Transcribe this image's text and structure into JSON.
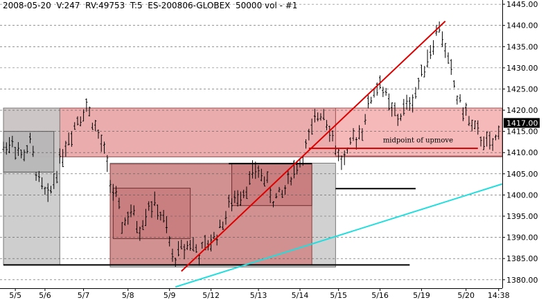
{
  "header": {
    "text": "2008-05-20  V:247  RV:49753  T:5  ES-200806-GLOBEX  50000 vol - #1"
  },
  "chart_data": {
    "type": "line",
    "style": "ohlc-bars",
    "title": "2008-05-20  V:247  RV:49753  T:5  ES-200806-GLOBEX  50000 vol - #1",
    "y_axis_side": "right",
    "ylim": [
      1378,
      1446
    ],
    "y_ticks": [
      1380,
      1385,
      1390,
      1395,
      1400,
      1405,
      1410,
      1415,
      1420,
      1425,
      1430,
      1435,
      1440,
      1445
    ],
    "y_tick_labels": [
      "1380.00",
      "1385.00",
      "1390.00",
      "1395.00",
      "1400.00",
      "1405.00",
      "1410.00",
      "1415.00",
      "1420.00",
      "1425.00",
      "1430.00",
      "1435.00",
      "1440.00",
      "1445.00"
    ],
    "grid": true,
    "last_price_label": "1417.00",
    "last_price": 1417,
    "x_ticks": [
      {
        "label": "5/5",
        "bar": 4
      },
      {
        "label": "5/6",
        "bar": 14
      },
      {
        "label": "5/7",
        "bar": 27
      },
      {
        "label": "5/8",
        "bar": 42
      },
      {
        "label": "5/9",
        "bar": 56
      },
      {
        "label": "5/12",
        "bar": 70
      },
      {
        "label": "5/13",
        "bar": 86
      },
      {
        "label": "5/14",
        "bar": 100
      },
      {
        "label": "5/15",
        "bar": 113
      },
      {
        "label": "5/16",
        "bar": 127
      },
      {
        "label": "5/19",
        "bar": 141
      },
      {
        "label": "5/20",
        "bar": 156
      },
      {
        "label": "14:38",
        "bar": 167
      }
    ],
    "bar_count": 170,
    "path_points": [
      [
        0,
        1411
      ],
      [
        3,
        1413
      ],
      [
        6,
        1409
      ],
      [
        9,
        1412
      ],
      [
        12,
        1403
      ],
      [
        15,
        1399
      ],
      [
        18,
        1406
      ],
      [
        21,
        1412
      ],
      [
        25,
        1418
      ],
      [
        28,
        1421
      ],
      [
        31,
        1416
      ],
      [
        34,
        1410
      ],
      [
        36,
        1403
      ],
      [
        38,
        1399
      ],
      [
        40,
        1393
      ],
      [
        43,
        1396
      ],
      [
        46,
        1392
      ],
      [
        49,
        1398
      ],
      [
        52,
        1397
      ],
      [
        55,
        1392
      ],
      [
        57,
        1385
      ],
      [
        60,
        1387
      ],
      [
        63,
        1389
      ],
      [
        66,
        1386
      ],
      [
        70,
        1389
      ],
      [
        73,
        1392
      ],
      [
        76,
        1397
      ],
      [
        79,
        1400
      ],
      [
        82,
        1402
      ],
      [
        85,
        1406
      ],
      [
        88,
        1404
      ],
      [
        91,
        1399
      ],
      [
        94,
        1400
      ],
      [
        97,
        1405
      ],
      [
        100,
        1408
      ],
      [
        103,
        1413
      ],
      [
        106,
        1419
      ],
      [
        108,
        1420
      ],
      [
        110,
        1416
      ],
      [
        112,
        1411
      ],
      [
        114,
        1408
      ],
      [
        116,
        1409
      ],
      [
        118,
        1413
      ],
      [
        121,
        1416
      ],
      [
        124,
        1423
      ],
      [
        127,
        1427
      ],
      [
        130,
        1421
      ],
      [
        133,
        1418
      ],
      [
        136,
        1421
      ],
      [
        139,
        1424
      ],
      [
        142,
        1431
      ],
      [
        145,
        1436
      ],
      [
        147,
        1440
      ],
      [
        149,
        1434
      ],
      [
        151,
        1429
      ],
      [
        153,
        1423
      ],
      [
        156,
        1419
      ],
      [
        159,
        1415
      ],
      [
        162,
        1413
      ],
      [
        165,
        1411
      ],
      [
        168,
        1417
      ]
    ],
    "shaded_zones": [
      {
        "name": "upper-resistance-zone",
        "color": "#e8a3a3",
        "opacity": 0.9,
        "bar_from": 0,
        "bar_to": 175,
        "y_from": 1409,
        "y_to": 1420.5,
        "border": "#a04a4a"
      },
      {
        "name": "lower-range-zone",
        "color": "#c9c9c9",
        "opacity": 0.9,
        "bar_from": 0,
        "bar_to": 19,
        "y_from": 1383.5,
        "y_to": 1420.5,
        "border": "#777777"
      },
      {
        "name": "range-consolidation-zone",
        "color": "#c9c9c9",
        "opacity": 0.85,
        "bar_from": 36,
        "bar_to": 112,
        "y_from": 1383,
        "y_to": 1407.5,
        "border": "#777777"
      },
      {
        "name": "mid-box-1",
        "color": "#d28a8a",
        "opacity": 0.9,
        "bar_from": 36,
        "bar_to": 104,
        "y_from": 1383.5,
        "y_to": 1407.3,
        "border": "#8c3e3e"
      },
      {
        "name": "small-box-left",
        "color": "#b0b0b0",
        "opacity": 0.7,
        "bar_from": 0,
        "bar_to": 17,
        "y_from": 1405.4,
        "y_to": 1415,
        "border": "#555555"
      },
      {
        "name": "small-box-mid",
        "color": "#c47878",
        "opacity": 0.7,
        "bar_from": 37,
        "bar_to": 63,
        "y_from": 1389.7,
        "y_to": 1401.6,
        "border": "#6d2d2d"
      },
      {
        "name": "small-box-right",
        "color": "#c47878",
        "opacity": 0.7,
        "bar_from": 77,
        "bar_to": 104,
        "y_from": 1397.5,
        "y_to": 1407.5,
        "border": "#6d2d2d"
      },
      {
        "name": "pink-zone-right",
        "color": "#f6b9b9",
        "opacity": 0.95,
        "bar_from": 112,
        "bar_to": 170,
        "y_from": 1409.2,
        "y_to": 1420.5,
        "border": "#a04a4a"
      }
    ],
    "trend_lines": [
      {
        "name": "up-trend-line",
        "color": "#dd0000",
        "width": 2,
        "from": [
          60,
          1382
        ],
        "to": [
          149,
          1441
        ]
      },
      {
        "name": "support-trend-line",
        "color": "#22dddd",
        "width": 2,
        "from": [
          58,
          1378.3
        ],
        "to": [
          170,
          1402.6
        ]
      }
    ],
    "horizontal_lines": [
      {
        "name": "midpoint-line",
        "color": "#cc0000",
        "width": 2,
        "bar_from": 103,
        "bar_to": 160,
        "y": 1411
      },
      {
        "name": "level-1401",
        "color": "#000000",
        "width": 2,
        "bar_from": 112,
        "bar_to": 139,
        "y": 1401.5
      },
      {
        "name": "level-1383-left",
        "color": "#000000",
        "width": 2,
        "bar_from": 0,
        "bar_to": 112,
        "y": 1383.5
      },
      {
        "name": "level-1383-right",
        "color": "#000000",
        "width": 2,
        "bar_from": 112,
        "bar_to": 137,
        "y": 1383.5
      },
      {
        "name": "level-1407",
        "color": "#000000",
        "width": 2,
        "bar_from": 76,
        "bar_to": 104,
        "y": 1407.4
      }
    ],
    "annotations": [
      {
        "text": "midpoint of upmove",
        "bar": 128,
        "y": 1412.4
      }
    ]
  }
}
